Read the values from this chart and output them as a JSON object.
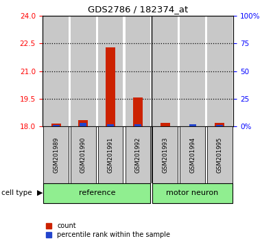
{
  "title": "GDS2786 / 182374_at",
  "samples": [
    "GSM201989",
    "GSM201990",
    "GSM201991",
    "GSM201992",
    "GSM201993",
    "GSM201994",
    "GSM201995"
  ],
  "red_values": [
    18.15,
    18.35,
    22.28,
    19.55,
    18.2,
    18.0,
    18.2
  ],
  "blue_values": [
    18.07,
    18.18,
    18.12,
    18.12,
    18.0,
    18.1,
    18.07
  ],
  "red_base": 18.0,
  "ylim_left": [
    18,
    24
  ],
  "ylim_right": [
    0,
    100
  ],
  "yticks_left": [
    18,
    19.5,
    21,
    22.5,
    24
  ],
  "yticks_right": [
    0,
    25,
    50,
    75,
    100
  ],
  "bar_width": 0.35,
  "blue_bar_width": 0.25,
  "red_color": "#CC2200",
  "blue_color": "#2244CC",
  "background_bar_color": "#C8C8C8",
  "group_bg_color": "#90EE90",
  "legend_items": [
    "count",
    "percentile rank within the sample"
  ]
}
